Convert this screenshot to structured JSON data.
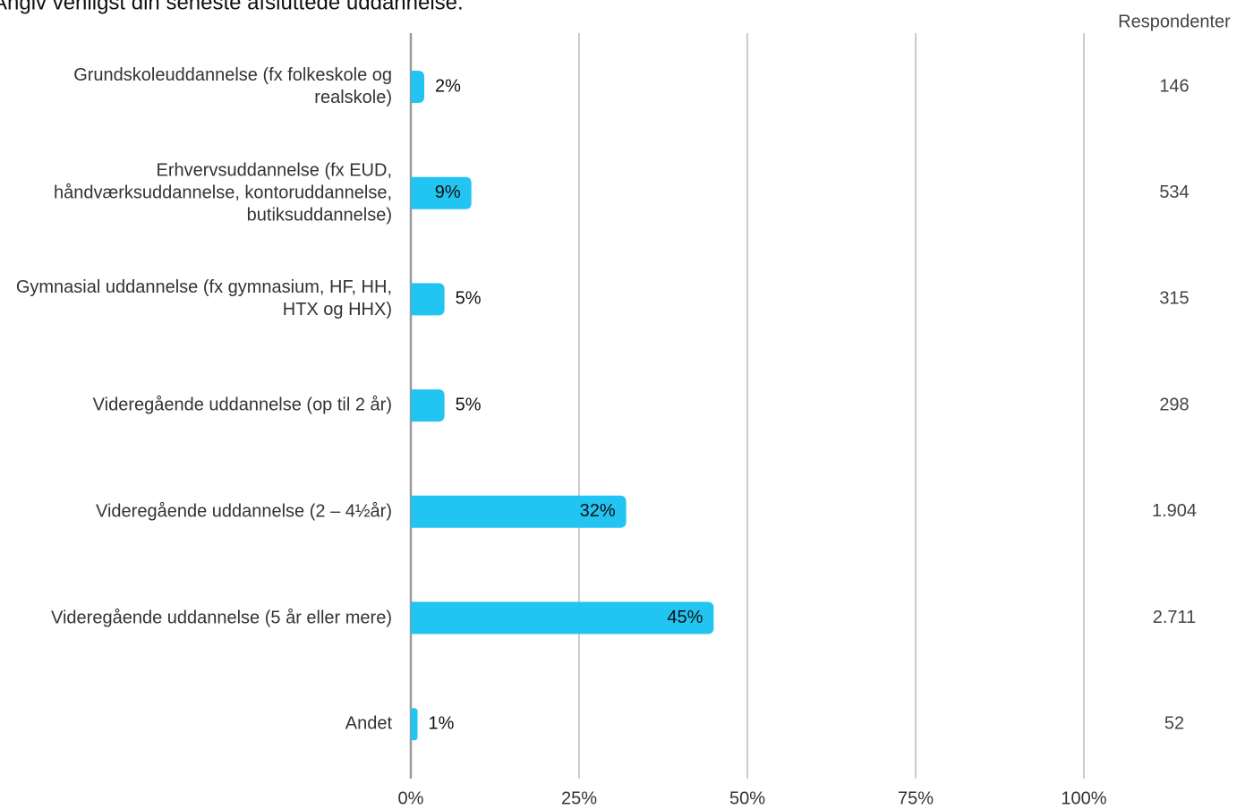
{
  "chart_data": {
    "type": "bar",
    "orientation": "horizontal",
    "title": "Angiv venligst din seneste afsluttede uddannelse.",
    "categories": [
      "Grundskoleuddannelse (fx folkeskole og realskole)",
      "Erhvervsuddannelse (fx EUD, håndværksuddannelse, kontoruddannelse, butiksuddannelse)",
      "Gymnasial uddannelse (fx gymnasium, HF, HH, HTX og HHX)",
      "Videregående uddannelse (op til 2 år)",
      "Videregående uddannelse (2 – 4½år)",
      "Videregående uddannelse (5 år eller mere)",
      "Andet"
    ],
    "values": [
      2,
      9,
      5,
      5,
      32,
      45,
      1
    ],
    "value_labels": [
      "2%",
      "9%",
      "5%",
      "5%",
      "32%",
      "45%",
      "1%"
    ],
    "color": "#22c4f2",
    "xlim": [
      0,
      100
    ],
    "xticks": [
      {
        "value": 0,
        "label": "0%"
      },
      {
        "value": 25,
        "label": "25%"
      },
      {
        "value": 50,
        "label": "50%"
      },
      {
        "value": 75,
        "label": "75%"
      },
      {
        "value": 100,
        "label": "100%"
      }
    ],
    "grid": true,
    "respondents": {
      "title": "Respondenter",
      "values": [
        146,
        534,
        315,
        298,
        1904,
        2711,
        52
      ],
      "value_labels": [
        "146",
        "534",
        "315",
        "298",
        "1.904",
        "2.711",
        "52"
      ]
    }
  }
}
